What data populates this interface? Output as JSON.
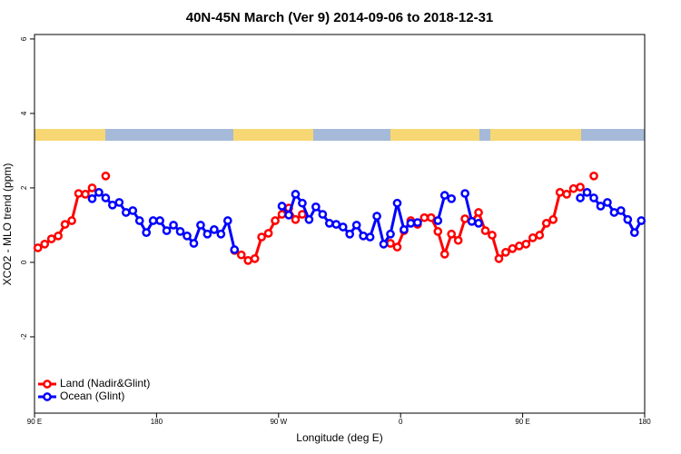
{
  "chart_data": {
    "type": "line",
    "title": "40N-45N March (Ver 9)   2014-09-06 to 2018-12-31",
    "x_label": "Longitude (deg E)",
    "y_label": "XCO2 - MLO trend (ppm)",
    "x": [
      92.5,
      97.5,
      102.5,
      107.5,
      112.5,
      117.5,
      122.5,
      127.5,
      132.5,
      137.5,
      142.5,
      147.5,
      152.5,
      157.5,
      162.5,
      167.5,
      172.5,
      177.5,
      182.5,
      187.5,
      192.5,
      197.5,
      202.5,
      207.5,
      212.5,
      217.5,
      222.5,
      227.5,
      232.5,
      237.5,
      242.5,
      247.5,
      252.5,
      257.5,
      262.5,
      267.5,
      272.5,
      277.5,
      282.5,
      287.5,
      292.5,
      297.5,
      302.5,
      307.5,
      312.5,
      317.5,
      322.5,
      327.5,
      332.5,
      337.5,
      342.5,
      347.5,
      352.5,
      357.5,
      362.5,
      367.5,
      372.5,
      377.5,
      382.5,
      387.5,
      392.5,
      397.5,
      402.5,
      407.5,
      412.5,
      417.5,
      422.5,
      427.5,
      432.5,
      437.5,
      442.5,
      447.5,
      452.5,
      457.5,
      462.5,
      467.5,
      472.5,
      477.5,
      482.5,
      487.5,
      492.5,
      497.5,
      502.5,
      507.5,
      512.5,
      517.5,
      522.5,
      527.5,
      532.5,
      537.5
    ],
    "xlim": [
      90,
      540
    ],
    "xticks": [
      {
        "value": 90,
        "label": "90 E"
      },
      {
        "value": 180,
        "label": "180"
      },
      {
        "value": 270,
        "label": "90 W"
      },
      {
        "value": 360,
        "label": "0"
      },
      {
        "value": 450,
        "label": "90 E"
      },
      {
        "value": 540,
        "label": "180"
      }
    ],
    "ylim": [
      -4.05,
      6.12
    ],
    "yticks": [
      -2,
      0,
      2,
      4,
      6
    ],
    "legend": "bottomleft",
    "series": [
      {
        "name": "Land (Nadir&Glint)",
        "color": "#ff0000",
        "values": [
          0.39,
          0.49,
          0.63,
          0.71,
          1.02,
          1.12,
          1.85,
          1.83,
          2.0,
          null,
          2.32,
          null,
          null,
          null,
          null,
          null,
          null,
          null,
          null,
          null,
          null,
          null,
          null,
          null,
          null,
          null,
          null,
          null,
          null,
          0.32,
          0.2,
          0.05,
          0.1,
          0.68,
          0.78,
          1.12,
          1.29,
          1.46,
          1.15,
          1.29,
          null,
          null,
          null,
          null,
          null,
          null,
          null,
          null,
          null,
          null,
          null,
          null,
          0.51,
          0.41,
          0.85,
          1.12,
          1.02,
          1.2,
          1.2,
          0.83,
          0.22,
          0.76,
          0.59,
          1.17,
          1.1,
          1.34,
          0.85,
          0.73,
          0.1,
          0.27,
          0.37,
          0.44,
          0.49,
          0.66,
          0.73,
          1.05,
          1.15,
          1.88,
          1.83,
          1.98,
          2.02,
          null,
          2.32,
          null,
          null,
          null,
          null,
          null,
          null,
          null
        ]
      },
      {
        "name": "Ocean (Glint)",
        "color": "#0000ff",
        "values": [
          null,
          null,
          null,
          null,
          null,
          null,
          null,
          null,
          1.71,
          1.88,
          1.73,
          1.54,
          1.61,
          1.34,
          1.39,
          1.12,
          0.8,
          1.12,
          1.12,
          0.85,
          1.0,
          0.83,
          0.71,
          0.51,
          1.0,
          0.76,
          0.88,
          0.76,
          1.12,
          0.34,
          null,
          null,
          null,
          null,
          null,
          null,
          1.51,
          1.27,
          1.83,
          1.59,
          1.15,
          1.49,
          1.29,
          1.05,
          1.02,
          0.95,
          0.76,
          1.0,
          0.71,
          0.68,
          1.24,
          0.49,
          0.76,
          1.59,
          0.88,
          1.05,
          1.07,
          null,
          null,
          1.12,
          1.8,
          1.71,
          null,
          1.85,
          1.1,
          1.05,
          null,
          null,
          null,
          null,
          null,
          null,
          null,
          null,
          null,
          null,
          null,
          null,
          null,
          null,
          1.73,
          1.88,
          1.73,
          1.51,
          1.61,
          1.34,
          1.39,
          1.15,
          0.8,
          1.12
        ]
      }
    ]
  }
}
